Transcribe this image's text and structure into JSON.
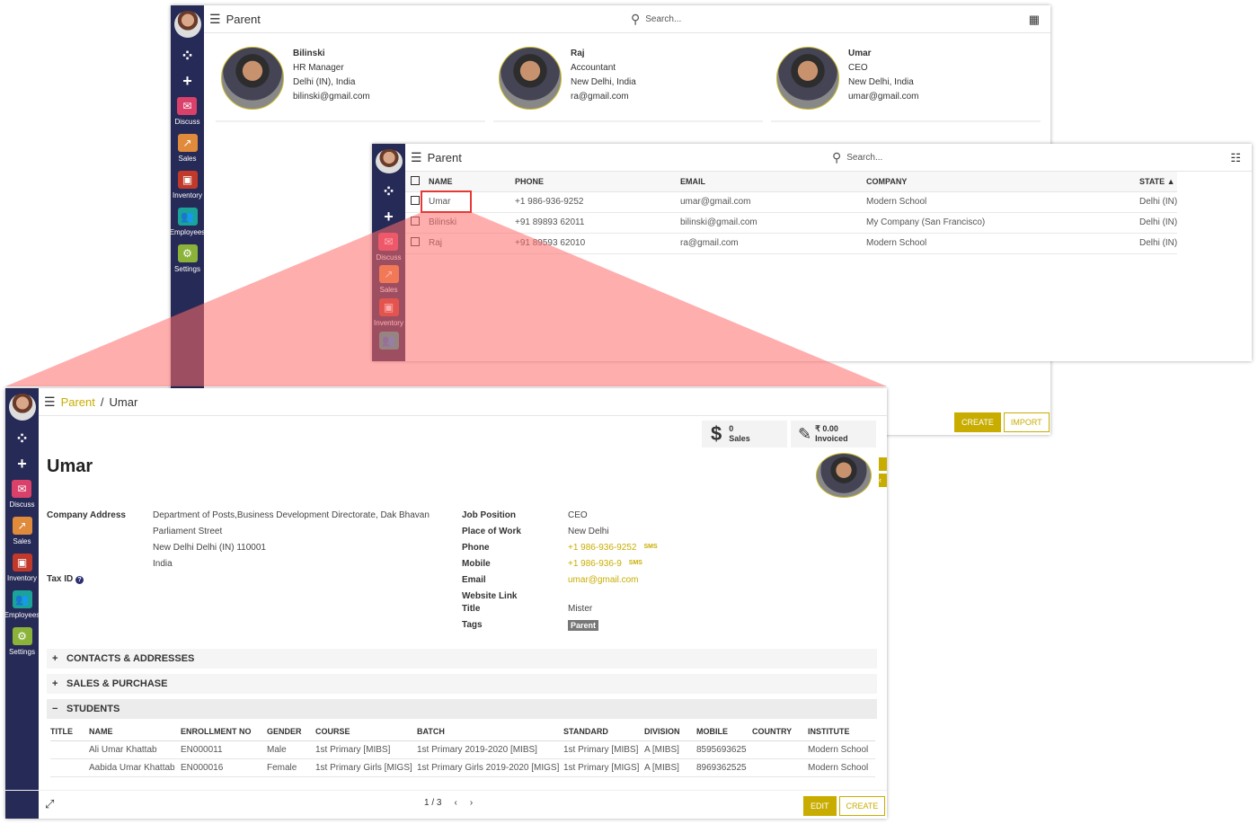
{
  "colors": {
    "sidebar": "#262a56",
    "accent": "#c8ad00",
    "highlight": "#e53935"
  },
  "sidebar": {
    "apps": [
      {
        "label": "Discuss",
        "icon": "chat-icon",
        "color": "#d9416b"
      },
      {
        "label": "Sales",
        "icon": "chart-icon",
        "color": "#e08a3c"
      },
      {
        "label": "Inventory",
        "icon": "box-icon",
        "color": "#c0392b"
      },
      {
        "label": "Employees",
        "icon": "users-icon",
        "color": "#1aa39a"
      },
      {
        "label": "Settings",
        "icon": "gear-icon",
        "color": "#8bb33a"
      }
    ]
  },
  "kanban": {
    "title": "Parent",
    "search_placeholder": "Search...",
    "cards": [
      {
        "name": "Bilinski",
        "job": "HR Manager",
        "location": "Delhi (IN), India",
        "email": "bilinski@gmail.com"
      },
      {
        "name": "Raj",
        "job": "Accountant",
        "location": "New Delhi, India",
        "email": "ra@gmail.com"
      },
      {
        "name": "Umar",
        "job": "CEO",
        "location": "New Delhi, India",
        "email": "umar@gmail.com"
      }
    ],
    "create": "CREATE",
    "import": "IMPORT"
  },
  "list": {
    "title": "Parent",
    "search_placeholder": "Search...",
    "columns": [
      "NAME",
      "PHONE",
      "EMAIL",
      "COMPANY",
      "STATE ▲"
    ],
    "rows": [
      [
        "Umar",
        "+1 986-936-9252",
        "umar@gmail.com",
        "Modern School",
        "Delhi (IN)"
      ],
      [
        "Bilinski",
        "+91 89893 62011",
        "bilinski@gmail.com",
        "My Company (San Francisco)",
        "Delhi (IN)"
      ],
      [
        "Raj",
        "+91 89593 62010",
        "ra@gmail.com",
        "Modern School",
        "Delhi (IN)"
      ]
    ]
  },
  "form": {
    "breadcrumb_parent": "Parent",
    "breadcrumb_sep": "/",
    "breadcrumb_current": "Umar",
    "sales_count": "0",
    "sales_label": "Sales",
    "invoiced_amount": "₹ 0.00",
    "invoiced_label": "Invoiced",
    "name": "Umar",
    "company_address_label": "Company Address",
    "address": [
      "Department of Posts,Business Development Directorate, Dak Bhavan",
      "Parliament Street",
      "New Delhi  Delhi (IN)  110001",
      "India"
    ],
    "tax_id_label": "Tax ID",
    "right_fields": [
      {
        "label": "Job Position",
        "value": "CEO"
      },
      {
        "label": "Place of Work",
        "value": "New Delhi"
      },
      {
        "label": "Phone",
        "value": "+1 986-936-9252",
        "sms": "SMS"
      },
      {
        "label": "Mobile",
        "value": "+1 986-936-9",
        "sms": "SMS"
      },
      {
        "label": "Email",
        "value": "umar@gmail.com"
      },
      {
        "label": "Website Link",
        "value": ""
      },
      {
        "label": "Title",
        "value": "Mister"
      },
      {
        "label": "Tags",
        "value": "Parent"
      }
    ],
    "sections": [
      "CONTACTS & ADDRESSES",
      "SALES & PURCHASE",
      "STUDENTS"
    ],
    "students": {
      "columns": [
        "TITLE",
        "NAME",
        "ENROLLMENT NO",
        "GENDER",
        "COURSE",
        "BATCH",
        "STANDARD",
        "DIVISION",
        "MOBILE",
        "COUNTRY",
        "INSTITUTE"
      ],
      "rows": [
        [
          "",
          "Ali Umar Khattab",
          "EN000011",
          "Male",
          "1st Primary [MIBS]",
          "1st Primary 2019-2020 [MIBS]",
          "1st Primary [MIBS]",
          "A [MIBS]",
          "8595693625",
          "",
          "Modern School"
        ],
        [
          "",
          "Aabida Umar Khattab",
          "EN000016",
          "Female",
          "1st Primary Girls [MIGS]",
          "1st Primary Girls 2019-2020 [MIGS]",
          "1st Primary [MIGS]",
          "A [MIBS]",
          "8969362525",
          "",
          "Modern School"
        ]
      ]
    },
    "pager": "1 / 3",
    "edit": "EDIT",
    "create": "CREATE"
  }
}
